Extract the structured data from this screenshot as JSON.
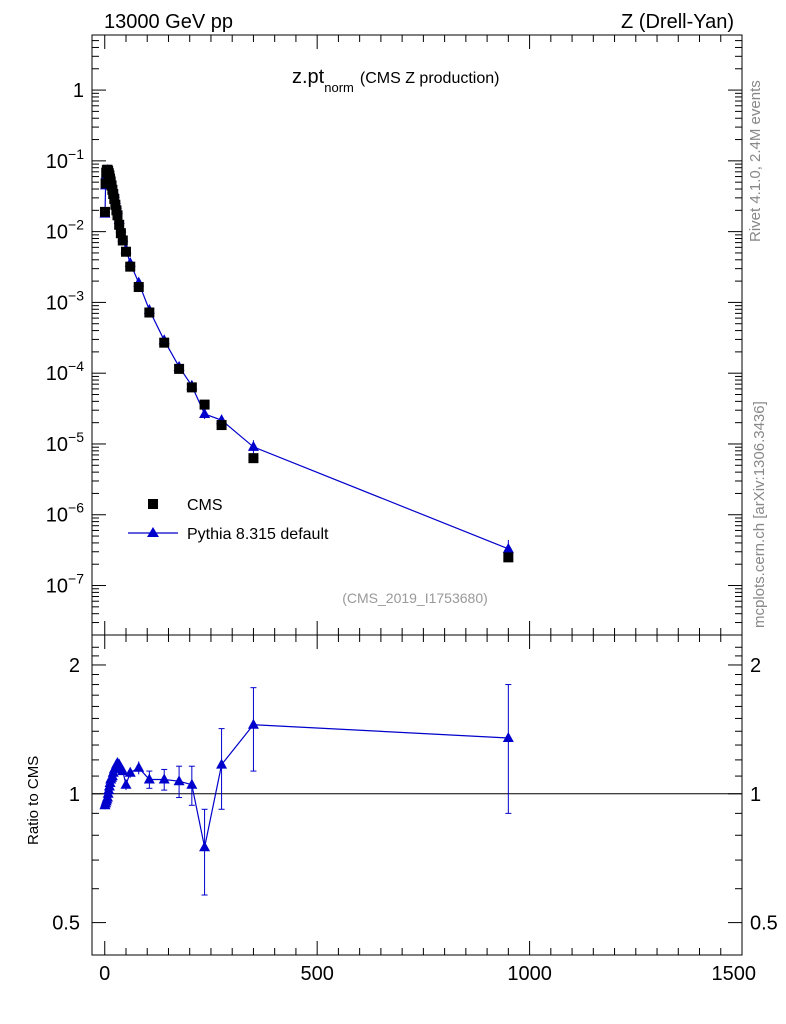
{
  "header": {
    "left": "13000 GeV pp",
    "right": "Z (Drell-Yan)"
  },
  "side_labels": {
    "rivet": "Rivet 4.1.0,  2.4M events",
    "mcplots": "mcplots.cern.ch [arXiv:1306.3436]"
  },
  "reference": "(CMS_2019_I1753680)",
  "colors": {
    "data": "#000000",
    "mc": "#0000cc"
  },
  "chart_data": [
    {
      "type": "scatter",
      "panel": "main",
      "title_main": "z.pt",
      "title_sub": "norm",
      "title_suffix": "(CMS Z production)",
      "yscale": "log",
      "ylim": [
        2e-08,
        6
      ],
      "xlim": [
        -30,
        1500
      ],
      "ytick_labels": [
        {
          "value": 1,
          "mant": "1",
          "exp": ""
        },
        {
          "value": 0.1,
          "mant": "10",
          "exp": "−1"
        },
        {
          "value": 0.01,
          "mant": "10",
          "exp": "−2"
        },
        {
          "value": 0.001,
          "mant": "10",
          "exp": "−3"
        },
        {
          "value": 0.0001,
          "mant": "10",
          "exp": "−4"
        },
        {
          "value": 1e-05,
          "mant": "10",
          "exp": "−5"
        },
        {
          "value": 1e-06,
          "mant": "10",
          "exp": "−6"
        },
        {
          "value": 1e-07,
          "mant": "10",
          "exp": "−7"
        }
      ],
      "legend_position": "bottom-left",
      "series": [
        {
          "name": "CMS",
          "marker": "square",
          "x": [
            0.5,
            2,
            3.5,
            5,
            6.5,
            8,
            9.5,
            11,
            12.5,
            14,
            16,
            18,
            20,
            22.5,
            25,
            27.5,
            30,
            34,
            38,
            42.5,
            50,
            60,
            80,
            105,
            140,
            175,
            205,
            235,
            275,
            350,
            950
          ],
          "y": [
            0.019,
            0.048,
            0.068,
            0.074,
            0.075,
            0.072,
            0.067,
            0.062,
            0.056,
            0.051,
            0.045,
            0.039,
            0.034,
            0.029,
            0.024,
            0.02,
            0.017,
            0.0125,
            0.0095,
            0.0075,
            0.0052,
            0.0032,
            0.00165,
            0.00072,
            0.00027,
            0.000115,
            6.3e-05,
            3.6e-05,
            1.85e-05,
            6.3e-06,
            2.5e-07
          ]
        },
        {
          "name": "Pythia 8.315 default",
          "marker": "triangle",
          "x": [
            0.5,
            2,
            3.5,
            5,
            6.5,
            8,
            9.5,
            11,
            12.5,
            14,
            16,
            18,
            20,
            22.5,
            25,
            27.5,
            30,
            34,
            38,
            42.5,
            50,
            60,
            80,
            105,
            140,
            175,
            205,
            235,
            275,
            350,
            950
          ],
          "y": [
            0.018,
            0.045,
            0.064,
            0.071,
            0.074,
            0.073,
            0.069,
            0.065,
            0.06,
            0.056,
            0.05,
            0.044,
            0.039,
            0.034,
            0.028,
            0.024,
            0.0205,
            0.0146,
            0.0111,
            0.0082,
            0.0056,
            0.0036,
            0.0019,
            0.00078,
            0.000292,
            0.000123,
            6.65e-05,
            2.65e-05,
            2.17e-05,
            9.1e-06,
            3.3e-07
          ],
          "yerr": [
            0,
            0,
            0,
            0,
            0,
            0,
            0,
            0,
            0,
            0,
            0,
            0,
            0,
            0,
            0,
            0,
            0,
            0,
            0,
            0,
            0,
            0,
            0,
            0,
            1.2e-05,
            8e-06,
            5e-06,
            4e-06,
            4e-06,
            2.2e-06,
            1.1e-07
          ]
        }
      ]
    },
    {
      "type": "line",
      "panel": "ratio",
      "ylabel": "Ratio to CMS",
      "yscale": "log",
      "ylim": [
        0.42,
        2.35
      ],
      "xlim": [
        -30,
        1500
      ],
      "reference_line": 1,
      "ytick_labels": [
        {
          "value": 0.5,
          "label": "0.5"
        },
        {
          "value": 1,
          "label": "1"
        },
        {
          "value": 2,
          "label": "2"
        }
      ],
      "xtick_labels": [
        {
          "value": 0,
          "label": "0"
        },
        {
          "value": 500,
          "label": "500"
        },
        {
          "value": 1000,
          "label": "1000"
        },
        {
          "value": 1500,
          "label": "1500"
        }
      ],
      "series": [
        {
          "name": "Pythia 8.315 default / CMS",
          "x": [
            0.5,
            2,
            3.5,
            5,
            6.5,
            8,
            9.5,
            11,
            12.5,
            14,
            16,
            18,
            20,
            22.5,
            25,
            27.5,
            30,
            34,
            38,
            42.5,
            50,
            60,
            80,
            105,
            140,
            175,
            205,
            235,
            275,
            350,
            950
          ],
          "y": [
            0.94,
            0.95,
            0.96,
            0.97,
            0.98,
            1.0,
            1.02,
            1.04,
            1.06,
            1.08,
            1.09,
            1.1,
            1.12,
            1.14,
            1.15,
            1.17,
            1.18,
            1.17,
            1.15,
            1.13,
            1.05,
            1.12,
            1.15,
            1.08,
            1.08,
            1.07,
            1.05,
            0.75,
            1.17,
            1.45,
            1.35
          ],
          "yerr": [
            0.02,
            0.02,
            0.02,
            0.02,
            0.02,
            0.02,
            0.02,
            0.02,
            0.02,
            0.02,
            0.02,
            0.02,
            0.02,
            0.02,
            0.02,
            0.02,
            0.02,
            0.02,
            0.02,
            0.02,
            0.03,
            0.03,
            0.04,
            0.05,
            0.06,
            0.09,
            0.11,
            0.17,
            0.25,
            0.32,
            0.45
          ]
        }
      ]
    }
  ]
}
